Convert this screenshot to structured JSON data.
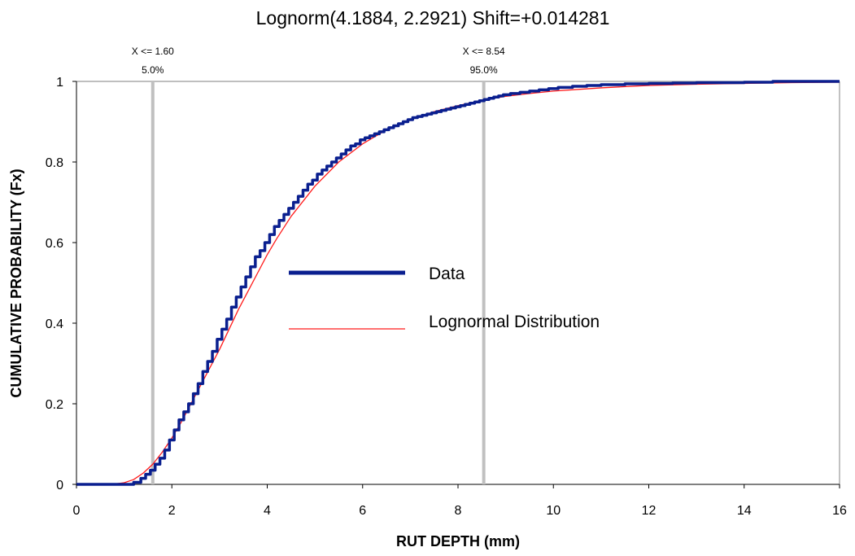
{
  "chart_data": {
    "type": "line",
    "title": "Lognorm(4.1884, 2.2921) Shift=+0.014281",
    "xlabel": "RUT DEPTH (mm)",
    "ylabel": "CUMULATIVE PROBABILITY (Fx)",
    "xlim": [
      0,
      16
    ],
    "ylim": [
      0,
      1
    ],
    "x_ticks": [
      0,
      2,
      4,
      6,
      8,
      10,
      12,
      14,
      16
    ],
    "y_ticks": [
      0,
      0.2,
      0.4,
      0.6,
      0.8,
      1
    ],
    "x_tick_labels": [
      "0",
      "2",
      "4",
      "6",
      "8",
      "10",
      "12",
      "14",
      "16"
    ],
    "y_tick_labels": [
      "0",
      "0.2",
      "0.4",
      "0.6",
      "0.8",
      "1"
    ],
    "grid": false,
    "legend_position": "center",
    "markers": [
      {
        "x": 1.6,
        "label": "X <= 1.60",
        "percent": "5.0%"
      },
      {
        "x": 8.54,
        "label": "X <= 8.54",
        "percent": "95.0%"
      }
    ],
    "series": [
      {
        "name": "Data",
        "style": "step",
        "color": "#0a1f8f",
        "x": [
          0,
          1.2,
          1.35,
          1.45,
          1.55,
          1.65,
          1.75,
          1.85,
          1.95,
          2.05,
          2.15,
          2.25,
          2.35,
          2.45,
          2.55,
          2.65,
          2.75,
          2.85,
          2.95,
          3.05,
          3.15,
          3.25,
          3.35,
          3.45,
          3.55,
          3.65,
          3.75,
          3.85,
          3.95,
          4.05,
          4.15,
          4.25,
          4.35,
          4.45,
          4.55,
          4.65,
          4.75,
          4.85,
          4.95,
          5.05,
          5.15,
          5.25,
          5.35,
          5.45,
          5.55,
          5.65,
          5.75,
          5.85,
          5.95,
          6.05,
          6.15,
          6.25,
          6.35,
          6.45,
          6.55,
          6.65,
          6.75,
          6.85,
          6.95,
          7.05,
          7.15,
          7.25,
          7.35,
          7.45,
          7.55,
          7.65,
          7.75,
          7.85,
          7.95,
          8.05,
          8.15,
          8.25,
          8.35,
          8.45,
          8.55,
          8.65,
          8.75,
          8.85,
          8.95,
          9.1,
          9.3,
          9.5,
          9.7,
          9.9,
          10.1,
          10.4,
          10.7,
          11.0,
          11.5,
          12.0,
          12.5,
          13.0,
          14.0,
          14.6,
          16.0
        ],
        "values": [
          0,
          0.005,
          0.015,
          0.025,
          0.035,
          0.05,
          0.065,
          0.085,
          0.11,
          0.135,
          0.16,
          0.18,
          0.2,
          0.225,
          0.25,
          0.28,
          0.305,
          0.33,
          0.36,
          0.385,
          0.41,
          0.44,
          0.465,
          0.49,
          0.515,
          0.54,
          0.565,
          0.58,
          0.6,
          0.62,
          0.64,
          0.655,
          0.67,
          0.685,
          0.7,
          0.715,
          0.73,
          0.745,
          0.755,
          0.77,
          0.78,
          0.79,
          0.8,
          0.81,
          0.82,
          0.83,
          0.84,
          0.845,
          0.855,
          0.86,
          0.865,
          0.87,
          0.875,
          0.88,
          0.885,
          0.89,
          0.895,
          0.9,
          0.905,
          0.91,
          0.913,
          0.916,
          0.919,
          0.922,
          0.925,
          0.928,
          0.931,
          0.934,
          0.937,
          0.94,
          0.943,
          0.946,
          0.949,
          0.952,
          0.955,
          0.958,
          0.961,
          0.964,
          0.967,
          0.97,
          0.973,
          0.976,
          0.979,
          0.982,
          0.985,
          0.988,
          0.99,
          0.992,
          0.994,
          0.995,
          0.996,
          0.997,
          0.998,
          1.0,
          1.0
        ]
      },
      {
        "name": "Lognormal Distribution",
        "style": "smooth",
        "color": "#ff1a1a",
        "x": [
          0,
          0.8,
          1.0,
          1.2,
          1.4,
          1.6,
          1.8,
          2.0,
          2.2,
          2.4,
          2.6,
          2.8,
          3.0,
          3.2,
          3.4,
          3.6,
          3.8,
          4.0,
          4.2,
          4.5,
          4.8,
          5.0,
          5.5,
          6.0,
          6.5,
          7.0,
          7.5,
          8.0,
          8.5,
          9.0,
          9.5,
          10.0,
          11.0,
          12.0,
          13.0,
          14.0,
          15.0,
          16.0
        ],
        "values": [
          0,
          0.001,
          0.004,
          0.012,
          0.028,
          0.05,
          0.08,
          0.115,
          0.155,
          0.2,
          0.245,
          0.29,
          0.335,
          0.385,
          0.435,
          0.48,
          0.525,
          0.57,
          0.61,
          0.665,
          0.71,
          0.74,
          0.8,
          0.845,
          0.88,
          0.905,
          0.925,
          0.94,
          0.953,
          0.963,
          0.97,
          0.976,
          0.984,
          0.99,
          0.993,
          0.995,
          0.997,
          0.998
        ]
      }
    ]
  }
}
